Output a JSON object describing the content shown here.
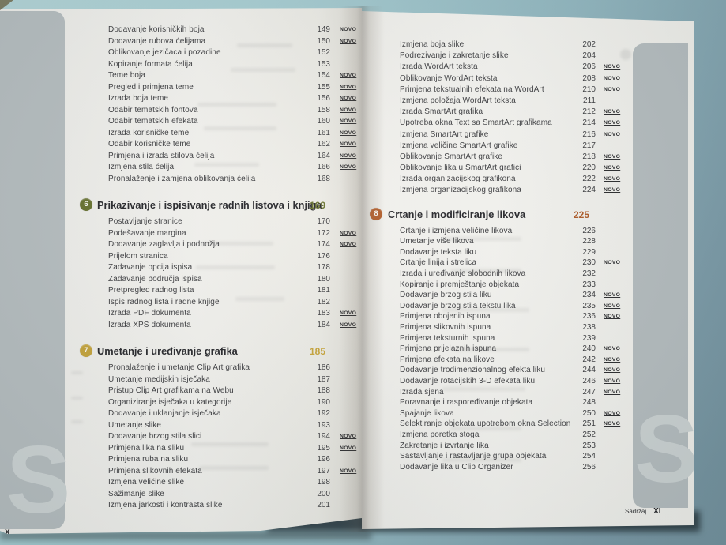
{
  "book": {
    "novo_label": "NOVO",
    "left_page": {
      "tab_letter": "S",
      "footer_page_number": "X",
      "blocks": [
        {
          "items": [
            {
              "title": "Dodavanje korisničkih boja",
              "page": "149",
              "novo": true
            },
            {
              "title": "Dodavanje rubova ćelijama",
              "page": "150",
              "novo": true
            },
            {
              "title": "Oblikovanje jezičaca i pozadine",
              "page": "152",
              "novo": false
            },
            {
              "title": "Kopiranje formata ćelija",
              "page": "153",
              "novo": false
            },
            {
              "title": "Teme boja",
              "page": "154",
              "novo": true
            },
            {
              "title": "Pregled i primjena teme",
              "page": "155",
              "novo": true
            },
            {
              "title": "Izrada boja teme",
              "page": "156",
              "novo": true
            },
            {
              "title": "Odabir tematskih fontova",
              "page": "158",
              "novo": true
            },
            {
              "title": "Odabir tematskih efekata",
              "page": "160",
              "novo": true
            },
            {
              "title": "Izrada korisničke teme",
              "page": "161",
              "novo": true
            },
            {
              "title": "Odabir korisničke teme",
              "page": "162",
              "novo": true
            },
            {
              "title": "Primjena i izrada stilova ćelija",
              "page": "164",
              "novo": true
            },
            {
              "title": "Izmjena stila ćelija",
              "page": "166",
              "novo": true
            },
            {
              "title": "Pronalaženje i zamjena oblikovanja ćelija",
              "page": "168",
              "novo": false
            }
          ]
        },
        {
          "num": "6",
          "title": "Prikazivanje i ispisivanje radnih listova i knjiga",
          "page": "169",
          "color": "#68722e",
          "items": [
            {
              "title": "Postavljanje stranice",
              "page": "170",
              "novo": false
            },
            {
              "title": "Podešavanje margina",
              "page": "172",
              "novo": true
            },
            {
              "title": "Dodavanje zaglavlja i podnožja",
              "page": "174",
              "novo": true
            },
            {
              "title": "Prijelom stranica",
              "page": "176",
              "novo": false
            },
            {
              "title": "Zadavanje opcija ispisa",
              "page": "178",
              "novo": false
            },
            {
              "title": "Zadavanje područja ispisa",
              "page": "180",
              "novo": false
            },
            {
              "title": "Pretpregled radnog lista",
              "page": "181",
              "novo": false
            },
            {
              "title": "Ispis radnog lista i radne knjige",
              "page": "182",
              "novo": false
            },
            {
              "title": "Izrada PDF dokumenta",
              "page": "183",
              "novo": true
            },
            {
              "title": "Izrada XPS dokumenta",
              "page": "184",
              "novo": true
            }
          ]
        },
        {
          "num": "7",
          "title": "Umetanje i uređivanje grafika",
          "page": "185",
          "color": "#c7a43a",
          "items": [
            {
              "title": "Pronalaženje i umetanje Clip Art grafika",
              "page": "186",
              "novo": false
            },
            {
              "title": "Umetanje medijskih isječaka",
              "page": "187",
              "novo": false
            },
            {
              "title": "Pristup Clip Art grafikama na Webu",
              "page": "188",
              "novo": false
            },
            {
              "title": "Organiziranje isječaka u kategorije",
              "page": "190",
              "novo": false
            },
            {
              "title": "Dodavanje i uklanjanje isječaka",
              "page": "192",
              "novo": false
            },
            {
              "title": "Umetanje slike",
              "page": "193",
              "novo": false
            },
            {
              "title": "Dodavanje brzog stila slici",
              "page": "194",
              "novo": true
            },
            {
              "title": "Primjena lika na sliku",
              "page": "195",
              "novo": true
            },
            {
              "title": "Primjena ruba na sliku",
              "page": "196",
              "novo": false
            },
            {
              "title": "Primjena slikovnih efekata",
              "page": "197",
              "novo": true
            },
            {
              "title": "Izmjena veličine slike",
              "page": "198",
              "novo": false
            },
            {
              "title": "Sažimanje slike",
              "page": "200",
              "novo": false
            },
            {
              "title": "Izmjena jarkosti i kontrasta slike",
              "page": "201",
              "novo": false
            }
          ]
        }
      ]
    },
    "right_page": {
      "tab_letter": "S",
      "footer_label": "Sadržaj",
      "footer_page_number": "XI",
      "blocks": [
        {
          "items": [
            {
              "title": "Izmjena boja slike",
              "page": "202",
              "novo": false
            },
            {
              "title": "Podrezivanje i zakretanje slike",
              "page": "204",
              "novo": false
            },
            {
              "title": "Izrada WordArt teksta",
              "page": "206",
              "novo": true
            },
            {
              "title": "Oblikovanje WordArt teksta",
              "page": "208",
              "novo": true
            },
            {
              "title": "Primjena tekstualnih efekata na WordArt",
              "page": "210",
              "novo": true
            },
            {
              "title": "Izmjena položaja WordArt teksta",
              "page": "211",
              "novo": false
            },
            {
              "title": "Izrada SmartArt grafika",
              "page": "212",
              "novo": true
            },
            {
              "title": "Upotreba okna Text sa SmartArt grafikama",
              "page": "214",
              "novo": true
            },
            {
              "title": "Izmjena SmartArt grafike",
              "page": "216",
              "novo": true
            },
            {
              "title": "Izmjena veličine SmartArt grafike",
              "page": "217",
              "novo": false
            },
            {
              "title": "Oblikovanje SmartArt grafike",
              "page": "218",
              "novo": true
            },
            {
              "title": "Oblikovanje lika u SmartArt grafici",
              "page": "220",
              "novo": true
            },
            {
              "title": "Izrada organizacijskog grafikona",
              "page": "222",
              "novo": true
            },
            {
              "title": "Izmjena organizacijskog grafikona",
              "page": "224",
              "novo": true
            }
          ]
        },
        {
          "num": "8",
          "title": "Crtanje i modificiranje likova",
          "page": "225",
          "color": "#b25c28",
          "items": [
            {
              "title": "Crtanje i izmjena veličine likova",
              "page": "226",
              "novo": false
            },
            {
              "title": "Umetanje više likova",
              "page": "228",
              "novo": false
            },
            {
              "title": "Dodavanje teksta liku",
              "page": "229",
              "novo": false
            },
            {
              "title": "Crtanje linija i strelica",
              "page": "230",
              "novo": true
            },
            {
              "title": "Izrada i uređivanje slobodnih likova",
              "page": "232",
              "novo": false
            },
            {
              "title": "Kopiranje i premještanje objekata",
              "page": "233",
              "novo": false
            },
            {
              "title": "Dodavanje brzog stila liku",
              "page": "234",
              "novo": true
            },
            {
              "title": "Dodavanje brzog stila tekstu lika",
              "page": "235",
              "novo": true
            },
            {
              "title": "Primjena obojenih ispuna",
              "page": "236",
              "novo": true
            },
            {
              "title": "Primjena slikovnih ispuna",
              "page": "238",
              "novo": false
            },
            {
              "title": "Primjena teksturnih ispuna",
              "page": "239",
              "novo": false
            },
            {
              "title": "Primjena prijelaznih ispuna",
              "page": "240",
              "novo": true
            },
            {
              "title": "Primjena efekata na likove",
              "page": "242",
              "novo": true
            },
            {
              "title": "Dodavanje trodimenzionalnog efekta liku",
              "page": "244",
              "novo": true
            },
            {
              "title": "Dodavanje rotacijskih 3-D efekata liku",
              "page": "246",
              "novo": true
            },
            {
              "title": "Izrada sjena",
              "page": "247",
              "novo": true
            },
            {
              "title": "Poravnanje i raspoređivanje objekata",
              "page": "248",
              "novo": false
            },
            {
              "title": "Spajanje likova",
              "page": "250",
              "novo": true
            },
            {
              "title": "Selektiranje objekata upotrebom okna Selection",
              "page": "251",
              "novo": true
            },
            {
              "title": "Izmjena poretka stoga",
              "page": "252",
              "novo": false
            },
            {
              "title": "Zakretanje i izvrtanje lika",
              "page": "253",
              "novo": false
            },
            {
              "title": "Sastavljanje i rastavljanje grupa objekata",
              "page": "254",
              "novo": false
            },
            {
              "title": "Dodavanje lika u Clip Organizer",
              "page": "256",
              "novo": false
            }
          ]
        }
      ]
    }
  }
}
